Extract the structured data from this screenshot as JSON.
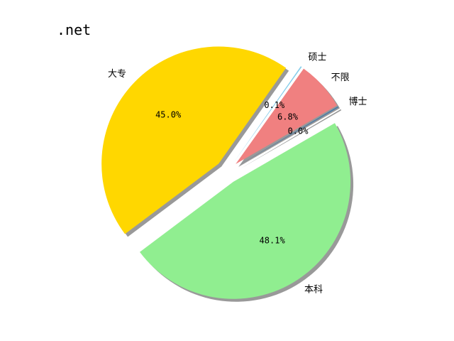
{
  "chart_data": {
    "type": "pie",
    "title": ".net",
    "shadow": true,
    "categories": [
      "博士",
      "不限",
      "硕士",
      "大专",
      "本科"
    ],
    "values": [
      0.0,
      6.8,
      0.1,
      45.0,
      48.1
    ],
    "percent_labels": [
      "0.0%",
      "6.8%",
      "0.1%",
      "45.0%",
      "48.1%"
    ],
    "colors": [
      "#4a7aa8",
      "#f08080",
      "#87ceeb",
      "#ffd700",
      "#90ee90"
    ]
  }
}
